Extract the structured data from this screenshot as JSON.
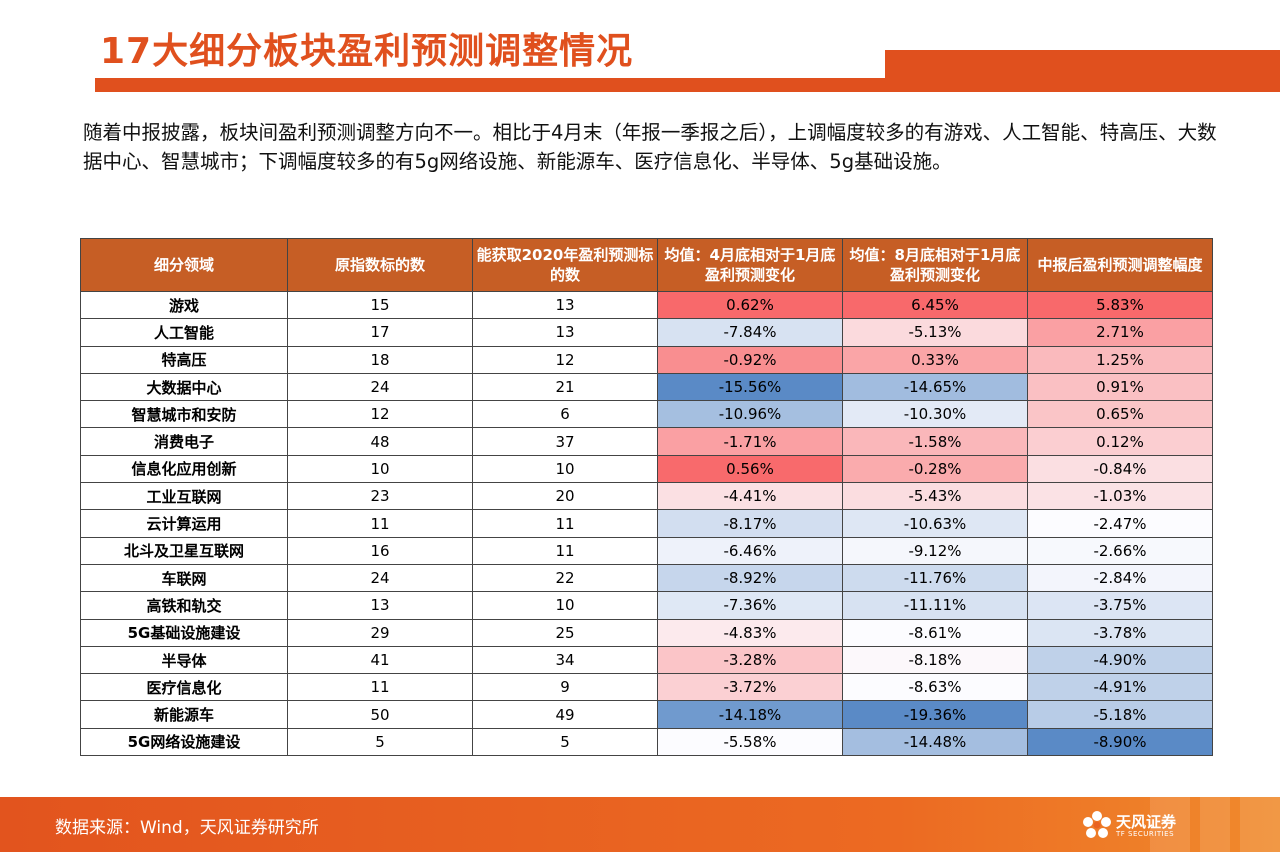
{
  "title": "17大细分板块盈利预测调整情况",
  "intro": "随着中报披露，板块间盈利预测调整方向不一。相比于4月末（年报一季报之后），上调幅度较多的有游戏、人工智能、特高压、大数据中心、智慧城市；下调幅度较多的有5g网络设施、新能源车、医疗信息化、半导体、5g基础设施。",
  "table": {
    "headers": [
      "细分领域",
      "原指数标的数",
      "能获取2020年盈利预测标的数",
      "均值：4月底相对于1月底盈利预测变化",
      "均值：8月底相对于1月底盈利预测变化",
      "中报后盈利预测调整幅度"
    ],
    "rows": [
      {
        "name": "游戏",
        "orig": "15",
        "avail": "13",
        "apr": "0.62%",
        "aug": "6.45%",
        "adj": "5.83%"
      },
      {
        "name": "人工智能",
        "orig": "17",
        "avail": "13",
        "apr": "-7.84%",
        "aug": "-5.13%",
        "adj": "2.71%"
      },
      {
        "name": "特高压",
        "orig": "18",
        "avail": "12",
        "apr": "-0.92%",
        "aug": "0.33%",
        "adj": "1.25%"
      },
      {
        "name": "大数据中心",
        "orig": "24",
        "avail": "21",
        "apr": "-15.56%",
        "aug": "-14.65%",
        "adj": "0.91%"
      },
      {
        "name": "智慧城市和安防",
        "orig": "12",
        "avail": "6",
        "apr": "-10.96%",
        "aug": "-10.30%",
        "adj": "0.65%"
      },
      {
        "name": "消费电子",
        "orig": "48",
        "avail": "37",
        "apr": "-1.71%",
        "aug": "-1.58%",
        "adj": "0.12%"
      },
      {
        "name": "信息化应用创新",
        "orig": "10",
        "avail": "10",
        "apr": "0.56%",
        "aug": "-0.28%",
        "adj": "-0.84%"
      },
      {
        "name": "工业互联网",
        "orig": "23",
        "avail": "20",
        "apr": "-4.41%",
        "aug": "-5.43%",
        "adj": "-1.03%"
      },
      {
        "name": "云计算运用",
        "orig": "11",
        "avail": "11",
        "apr": "-8.17%",
        "aug": "-10.63%",
        "adj": "-2.47%"
      },
      {
        "name": "北斗及卫星互联网",
        "orig": "16",
        "avail": "11",
        "apr": "-6.46%",
        "aug": "-9.12%",
        "adj": "-2.66%"
      },
      {
        "name": "车联网",
        "orig": "24",
        "avail": "22",
        "apr": "-8.92%",
        "aug": "-11.76%",
        "adj": "-2.84%"
      },
      {
        "name": "高铁和轨交",
        "orig": "13",
        "avail": "10",
        "apr": "-7.36%",
        "aug": "-11.11%",
        "adj": "-3.75%"
      },
      {
        "name": "5G基础设施建设",
        "orig": "29",
        "avail": "25",
        "apr": "-4.83%",
        "aug": "-8.61%",
        "adj": "-3.78%"
      },
      {
        "name": "半导体",
        "orig": "41",
        "avail": "34",
        "apr": "-3.28%",
        "aug": "-8.18%",
        "adj": "-4.90%"
      },
      {
        "name": "医疗信息化",
        "orig": "11",
        "avail": "9",
        "apr": "-3.72%",
        "aug": "-8.63%",
        "adj": "-4.91%"
      },
      {
        "name": "新能源车",
        "orig": "50",
        "avail": "49",
        "apr": "-14.18%",
        "aug": "-19.36%",
        "adj": "-5.18%"
      },
      {
        "name": "5G网络设施建设",
        "orig": "5",
        "avail": "5",
        "apr": "-5.58%",
        "aug": "-14.48%",
        "adj": "-8.90%"
      }
    ]
  },
  "footer": {
    "source": "数据来源：Wind，天风证券研究所",
    "logo_text": "天风证券",
    "logo_sub": "TF SECURITIES"
  },
  "colors": {
    "accent": "#e0501e",
    "header_bg": "#c65e25",
    "heat_high": "#f8696b",
    "heat_low": "#5a8ac6"
  }
}
